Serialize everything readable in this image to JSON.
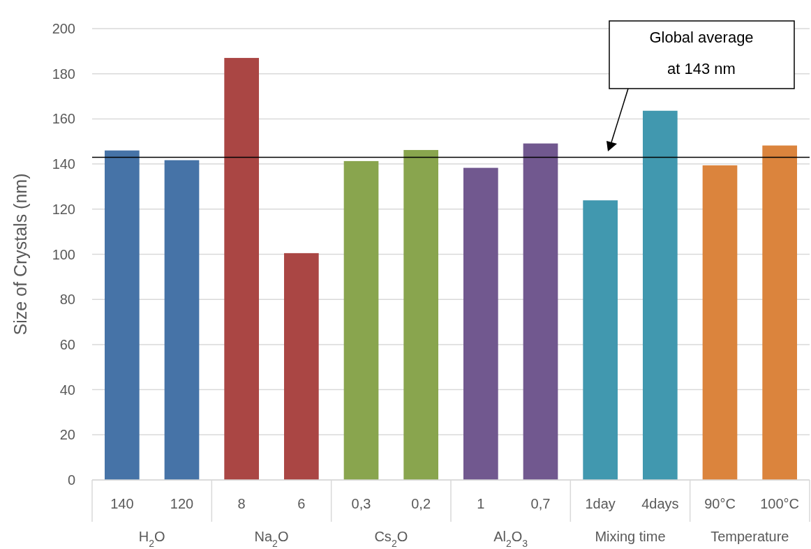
{
  "chart_data": {
    "type": "bar",
    "ylabel": "Size of Crystals (nm)",
    "categories": [
      "140",
      "120",
      "8",
      "6",
      "0,3",
      "0,2",
      "1",
      "0,7",
      "1day",
      "4days",
      "90°C",
      "100°C"
    ],
    "values": [
      146,
      141.7,
      187,
      100.5,
      141.3,
      146.2,
      138.3,
      149.1,
      123.9,
      163.6,
      139.4,
      148.2
    ],
    "colors": [
      "#4673a7",
      "#4673a7",
      "#aa4644",
      "#aa4644",
      "#89a54e",
      "#89a54e",
      "#71588f",
      "#71588f",
      "#4198af",
      "#4198af",
      "#db843d",
      "#db843d"
    ],
    "ylim": [
      0,
      200
    ],
    "yticks": [
      0,
      20,
      40,
      60,
      80,
      100,
      120,
      140,
      160,
      180,
      200
    ],
    "grid": "y",
    "ref_lines": [
      {
        "axis": "y",
        "value": 143,
        "label": "Global average at 143 nm",
        "color": "#000000"
      }
    ],
    "annotations": [
      "H$_{2}$O",
      "Na$_{2}$O",
      "Cs$_{2}$O",
      "Al$_{2}$O$_{3}$",
      "Mixing time",
      "Temperature"
    ]
  }
}
